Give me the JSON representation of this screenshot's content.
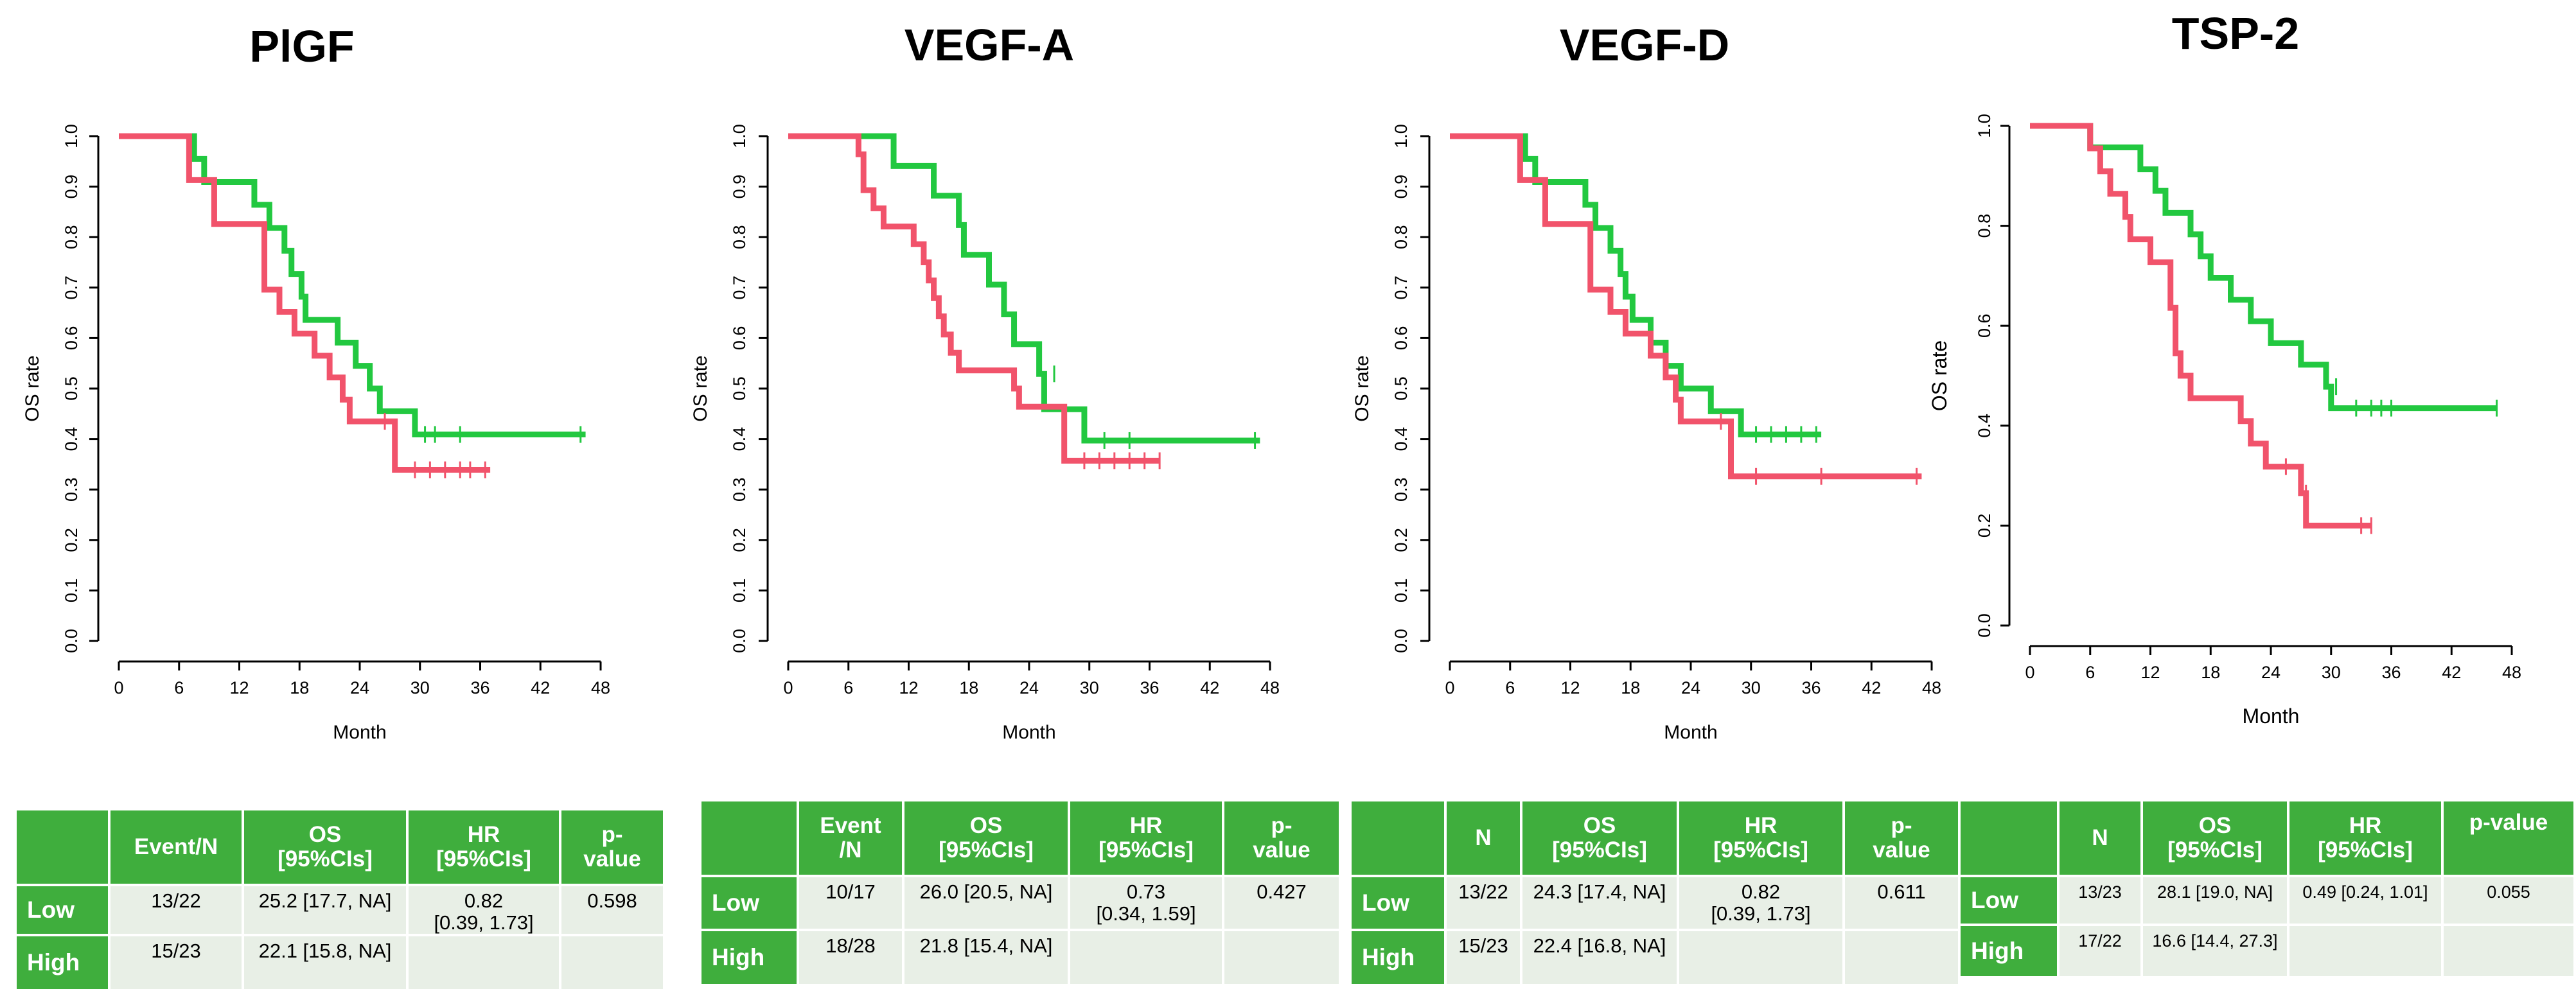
{
  "colors": {
    "low": "#22c840",
    "high": "#f1536b",
    "header": "#3fae3d",
    "cell": "#e8efe6"
  },
  "chart_data": [
    {
      "type": "line",
      "title": "PlGF",
      "xlabel": "Month",
      "ylabel": "OS rate",
      "xlim": [
        0,
        48
      ],
      "ylim": [
        0,
        1
      ],
      "xticks": [
        "0",
        "6",
        "12",
        "18",
        "24",
        "30",
        "36",
        "42",
        "48"
      ],
      "yticks": [
        "0.0",
        "0.1",
        "0.2",
        "0.3",
        "0.4",
        "0.5",
        "0.6",
        "0.7",
        "0.8",
        "0.9",
        "1.0"
      ],
      "series": [
        {
          "name": "Low",
          "color": "#22c840",
          "steps": [
            [
              0,
              1.0
            ],
            [
              7.5,
              0.955
            ],
            [
              8.5,
              0.909
            ],
            [
              13.5,
              0.864
            ],
            [
              15,
              0.818
            ],
            [
              16.5,
              0.773
            ],
            [
              17.2,
              0.727
            ],
            [
              18.2,
              0.682
            ],
            [
              18.6,
              0.636
            ],
            [
              21.8,
              0.591
            ],
            [
              23.6,
              0.545
            ],
            [
              25,
              0.5
            ],
            [
              26,
              0.455
            ],
            [
              29.5,
              0.409
            ],
            [
              46.5,
              0.409
            ]
          ],
          "censors": [
            [
              30.5,
              0.409
            ],
            [
              31.5,
              0.409
            ],
            [
              34,
              0.409
            ],
            [
              46,
              0.409
            ]
          ]
        },
        {
          "name": "High",
          "color": "#f1536b",
          "steps": [
            [
              0,
              1.0
            ],
            [
              7,
              0.913
            ],
            [
              9.5,
              0.826
            ],
            [
              14.5,
              0.696
            ],
            [
              16,
              0.652
            ],
            [
              17.5,
              0.609
            ],
            [
              19.5,
              0.565
            ],
            [
              21,
              0.522
            ],
            [
              22.3,
              0.478
            ],
            [
              23,
              0.435
            ],
            [
              27.5,
              0.339
            ],
            [
              37,
              0.339
            ]
          ],
          "censors": [
            [
              26.5,
              0.435
            ],
            [
              29.5,
              0.339
            ],
            [
              31,
              0.339
            ],
            [
              32.5,
              0.339
            ],
            [
              34,
              0.339
            ],
            [
              35,
              0.339
            ],
            [
              36.5,
              0.339
            ]
          ]
        }
      ]
    },
    {
      "type": "line",
      "title": "VEGF-A",
      "xlabel": "Month",
      "ylabel": "OS rate",
      "xlim": [
        0,
        48
      ],
      "ylim": [
        0,
        1
      ],
      "xticks": [
        "0",
        "6",
        "12",
        "18",
        "24",
        "30",
        "36",
        "42",
        "48"
      ],
      "yticks": [
        "0.0",
        "0.1",
        "0.2",
        "0.3",
        "0.4",
        "0.5",
        "0.6",
        "0.7",
        "0.8",
        "0.9",
        "1.0"
      ],
      "series": [
        {
          "name": "Low",
          "color": "#22c840",
          "steps": [
            [
              0,
              1.0
            ],
            [
              10.5,
              0.941
            ],
            [
              14.5,
              0.882
            ],
            [
              17,
              0.824
            ],
            [
              17.5,
              0.765
            ],
            [
              20,
              0.706
            ],
            [
              21.5,
              0.647
            ],
            [
              22.5,
              0.588
            ],
            [
              25,
              0.529
            ],
            [
              25.5,
              0.459
            ],
            [
              29.5,
              0.397
            ],
            [
              47,
              0.397
            ]
          ],
          "censors": [
            [
              26.5,
              0.529
            ],
            [
              31.5,
              0.397
            ],
            [
              34,
              0.397
            ],
            [
              46.5,
              0.397
            ]
          ]
        },
        {
          "name": "High",
          "color": "#f1536b",
          "steps": [
            [
              0,
              1.0
            ],
            [
              7,
              0.964
            ],
            [
              7.5,
              0.893
            ],
            [
              8.5,
              0.857
            ],
            [
              9.5,
              0.821
            ],
            [
              12.5,
              0.786
            ],
            [
              13.5,
              0.75
            ],
            [
              14,
              0.714
            ],
            [
              14.5,
              0.679
            ],
            [
              15,
              0.643
            ],
            [
              15.5,
              0.607
            ],
            [
              16.2,
              0.571
            ],
            [
              17,
              0.536
            ],
            [
              22.5,
              0.5
            ],
            [
              23,
              0.464
            ],
            [
              27.5,
              0.357
            ],
            [
              37,
              0.357
            ]
          ],
          "censors": [
            [
              29.5,
              0.357
            ],
            [
              31,
              0.357
            ],
            [
              32.5,
              0.357
            ],
            [
              34,
              0.357
            ],
            [
              35.5,
              0.357
            ],
            [
              37,
              0.357
            ]
          ]
        }
      ]
    },
    {
      "type": "line",
      "title": "VEGF-D",
      "xlabel": "Month",
      "ylabel": "OS rate",
      "xlim": [
        0,
        48
      ],
      "ylim": [
        0,
        1
      ],
      "xticks": [
        "0",
        "6",
        "12",
        "18",
        "24",
        "30",
        "36",
        "42",
        "48"
      ],
      "yticks": [
        "0.0",
        "0.1",
        "0.2",
        "0.3",
        "0.4",
        "0.5",
        "0.6",
        "0.7",
        "0.8",
        "0.9",
        "1.0"
      ],
      "series": [
        {
          "name": "Low",
          "color": "#22c840",
          "steps": [
            [
              0,
              1.0
            ],
            [
              7.5,
              0.955
            ],
            [
              8.5,
              0.909
            ],
            [
              13.5,
              0.864
            ],
            [
              14.5,
              0.818
            ],
            [
              16,
              0.773
            ],
            [
              17,
              0.727
            ],
            [
              17.5,
              0.682
            ],
            [
              18.2,
              0.636
            ],
            [
              20,
              0.591
            ],
            [
              21.5,
              0.545
            ],
            [
              23,
              0.5
            ],
            [
              26,
              0.455
            ],
            [
              29,
              0.409
            ],
            [
              37,
              0.409
            ]
          ],
          "censors": [
            [
              30.5,
              0.409
            ],
            [
              32,
              0.409
            ],
            [
              33.5,
              0.409
            ],
            [
              35,
              0.409
            ],
            [
              36.5,
              0.409
            ]
          ]
        },
        {
          "name": "High",
          "color": "#f1536b",
          "steps": [
            [
              0,
              1.0
            ],
            [
              7,
              0.913
            ],
            [
              9.5,
              0.826
            ],
            [
              14,
              0.696
            ],
            [
              16,
              0.652
            ],
            [
              17.5,
              0.609
            ],
            [
              20,
              0.565
            ],
            [
              21.5,
              0.522
            ],
            [
              22.5,
              0.478
            ],
            [
              23,
              0.435
            ],
            [
              28,
              0.326
            ],
            [
              47,
              0.326
            ]
          ],
          "censors": [
            [
              27,
              0.435
            ],
            [
              30.5,
              0.326
            ],
            [
              37,
              0.326
            ],
            [
              46.5,
              0.326
            ]
          ]
        }
      ]
    },
    {
      "type": "line",
      "title": "TSP-2",
      "xlabel": "Month",
      "ylabel": "OS rate",
      "xlim": [
        0,
        48
      ],
      "ylim": [
        0,
        1
      ],
      "xticks": [
        "0",
        "6",
        "12",
        "18",
        "24",
        "30",
        "36",
        "42",
        "48"
      ],
      "yticks": [
        "0.0",
        "0.2",
        "0.4",
        "0.6",
        "0.8",
        "1.0"
      ],
      "series": [
        {
          "name": "Low",
          "color": "#22c840",
          "steps": [
            [
              0,
              1.0
            ],
            [
              6,
              0.957
            ],
            [
              11,
              0.913
            ],
            [
              12.5,
              0.87
            ],
            [
              13.5,
              0.826
            ],
            [
              16,
              0.783
            ],
            [
              17,
              0.739
            ],
            [
              18,
              0.696
            ],
            [
              20,
              0.652
            ],
            [
              22,
              0.609
            ],
            [
              24,
              0.565
            ],
            [
              27,
              0.522
            ],
            [
              29.5,
              0.478
            ],
            [
              30,
              0.435
            ],
            [
              46.5,
              0.435
            ]
          ],
          "censors": [
            [
              30.5,
              0.478
            ],
            [
              32.5,
              0.435
            ],
            [
              34,
              0.435
            ],
            [
              35,
              0.435
            ],
            [
              36,
              0.435
            ],
            [
              46.5,
              0.435
            ]
          ]
        },
        {
          "name": "High",
          "color": "#f1536b",
          "steps": [
            [
              0,
              1.0
            ],
            [
              6,
              0.955
            ],
            [
              7,
              0.909
            ],
            [
              8,
              0.864
            ],
            [
              9.5,
              0.818
            ],
            [
              10,
              0.773
            ],
            [
              12,
              0.727
            ],
            [
              14,
              0.636
            ],
            [
              14.5,
              0.545
            ],
            [
              15,
              0.5
            ],
            [
              16,
              0.455
            ],
            [
              21,
              0.409
            ],
            [
              22,
              0.364
            ],
            [
              23.5,
              0.318
            ],
            [
              27,
              0.265
            ],
            [
              27.5,
              0.2
            ],
            [
              34,
              0.2
            ]
          ],
          "censors": [
            [
              25.5,
              0.318
            ],
            [
              27.5,
              0.265
            ],
            [
              33,
              0.2
            ],
            [
              34,
              0.2
            ]
          ]
        }
      ]
    }
  ],
  "tables": [
    {
      "headers": [
        "",
        "Event/N",
        "OS\n[95%CIs]",
        "HR\n[95%CIs]",
        "p-\nvalue"
      ],
      "rows": [
        {
          "label": "Low",
          "c1": "13/22",
          "c2": "25.2 [17.7, NA]",
          "c3": "0.82\n[0.39, 1.73]",
          "c4": "0.598"
        },
        {
          "label": "High",
          "c1": "15/23",
          "c2": "22.1 [15.8, NA]",
          "c3": "",
          "c4": ""
        }
      ]
    },
    {
      "headers": [
        "",
        "Event\n/N",
        "OS\n[95%CIs]",
        "HR\n[95%CIs]",
        "p-\nvalue"
      ],
      "rows": [
        {
          "label": "Low",
          "c1": "10/17",
          "c2": "26.0 [20.5, NA]",
          "c3": "0.73\n[0.34, 1.59]",
          "c4": "0.427"
        },
        {
          "label": "High",
          "c1": "18/28",
          "c2": "21.8 [15.4, NA]",
          "c3": "",
          "c4": ""
        }
      ]
    },
    {
      "headers": [
        "",
        "N",
        "OS\n[95%CIs]",
        "HR\n[95%CIs]",
        "p-\nvalue"
      ],
      "rows": [
        {
          "label": "Low",
          "c1": "13/22",
          "c2": "24.3 [17.4, NA]",
          "c3": "0.82\n[0.39, 1.73]",
          "c4": "0.611"
        },
        {
          "label": "High",
          "c1": "15/23",
          "c2": "22.4 [16.8, NA]",
          "c3": "",
          "c4": ""
        }
      ]
    },
    {
      "headers": [
        "",
        "N",
        "OS\n[95%CIs]",
        "HR\n[95%CIs]",
        "p-value"
      ],
      "rows": [
        {
          "label": "Low",
          "c1": "13/23",
          "c2": "28.1 [19.0, NA]",
          "c3": "0.49 [0.24, 1.01]",
          "c4": "0.055"
        },
        {
          "label": "High",
          "c1": "17/22",
          "c2": "16.6 [14.4, 27.3]",
          "c3": "",
          "c4": ""
        }
      ]
    }
  ]
}
